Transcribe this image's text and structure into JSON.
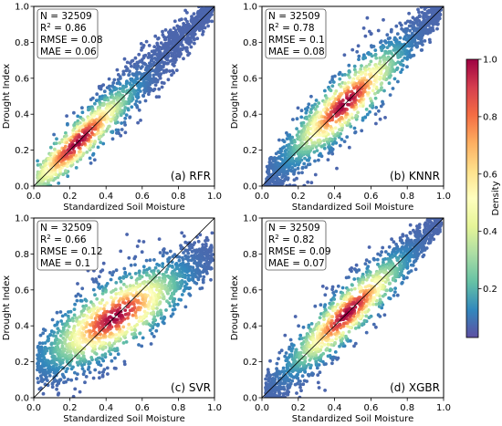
{
  "colorbar": {
    "label": "Density",
    "ticks": [
      0.2,
      0.4,
      0.6,
      0.8,
      1.0
    ],
    "tick_labels": [
      "0.2",
      "0.4",
      "0.6",
      "0.8",
      "1.0"
    ],
    "range": [
      0.03,
      1.0
    ],
    "colormap": [
      "#5e4fa2",
      "#3288bd",
      "#66c2a5",
      "#abdda4",
      "#e6f598",
      "#ffffbf",
      "#fee08b",
      "#fdae61",
      "#f46d43",
      "#d53e4f",
      "#9e0142"
    ]
  },
  "chart_data": [
    {
      "type": "scatter",
      "panel_label": "(a) RFR",
      "xlabel": "Standardized Soil Moisture",
      "ylabel": "Drought Index",
      "xlim": [
        0.0,
        1.0
      ],
      "ylim": [
        0.0,
        1.0
      ],
      "xticks": [
        "0.0",
        "0.2",
        "0.4",
        "0.6",
        "0.8",
        "1.0"
      ],
      "yticks": [
        "0.0",
        "0.2",
        "0.4",
        "0.6",
        "0.8",
        "1.0"
      ],
      "stats": {
        "N": "N = 32509",
        "R2_prefix": "R",
        "R2_value": " = 0.86",
        "RMSE": "RMSE = 0.08",
        "MAE": "MAE = 0.06"
      },
      "reference_line": "1:1",
      "density_peak": [
        0.25,
        0.24
      ],
      "spread": 0.055
    },
    {
      "type": "scatter",
      "panel_label": "(b) KNNR",
      "xlabel": "Standardized Soil Moisture",
      "ylabel": "Drought Index",
      "xlim": [
        0.0,
        1.0
      ],
      "ylim": [
        0.0,
        1.0
      ],
      "xticks": [
        "0.0",
        "0.2",
        "0.4",
        "0.6",
        "0.8",
        "1.0"
      ],
      "yticks": [
        "0.0",
        "0.2",
        "0.4",
        "0.6",
        "0.8",
        "1.0"
      ],
      "stats": {
        "N": "N = 32509",
        "R2_prefix": "R",
        "R2_value": " = 0.78",
        "RMSE": "RMSE = 0.1",
        "MAE": "MAE = 0.08"
      },
      "reference_line": "1:1",
      "density_peak": [
        0.45,
        0.47
      ],
      "spread": 0.07
    },
    {
      "type": "scatter",
      "panel_label": "(c) SVR",
      "xlabel": "Standardized Soil Moisture",
      "ylabel": "Drought Index",
      "xlim": [
        0.0,
        1.0
      ],
      "ylim": [
        0.0,
        1.0
      ],
      "xticks": [
        "0.0",
        "0.2",
        "0.4",
        "0.6",
        "0.8",
        "1.0"
      ],
      "yticks": [
        "0.0",
        "0.2",
        "0.4",
        "0.6",
        "0.8",
        "1.0"
      ],
      "stats": {
        "N": "N = 32509",
        "R2_prefix": "R",
        "R2_value": " = 0.66",
        "RMSE": "RMSE = 0.12",
        "MAE": "MAE = 0.1"
      },
      "reference_line": "1:1",
      "density_peak": [
        0.45,
        0.45
      ],
      "spread": 0.085
    },
    {
      "type": "scatter",
      "panel_label": "(d) XGBR",
      "xlabel": "Standardized Soil Moisture",
      "ylabel": "Drought Index",
      "xlim": [
        0.0,
        1.0
      ],
      "ylim": [
        0.0,
        1.0
      ],
      "xticks": [
        "0.0",
        "0.2",
        "0.4",
        "0.6",
        "0.8",
        "1.0"
      ],
      "yticks": [
        "0.0",
        "0.2",
        "0.4",
        "0.6",
        "0.8",
        "1.0"
      ],
      "stats": {
        "N": "N = 32509",
        "R2_prefix": "R",
        "R2_value": " = 0.82",
        "RMSE": "RMSE = 0.09",
        "MAE": "MAE = 0.07"
      },
      "reference_line": "1:1",
      "density_peak": [
        0.47,
        0.47
      ],
      "spread": 0.062
    }
  ]
}
